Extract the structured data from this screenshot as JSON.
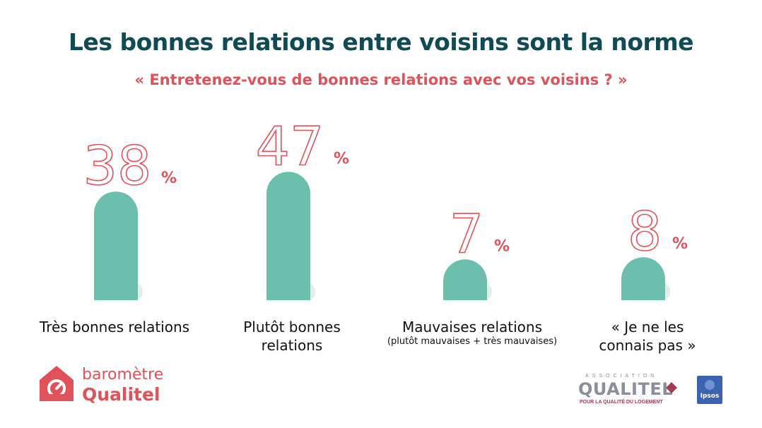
{
  "header": {
    "title": "Les bonnes relations entre voisins sont la norme",
    "subtitle": "« Entretenez-vous de bonnes relations avec vos voisins ? »"
  },
  "chart_data": {
    "type": "bar",
    "categories": [
      "Très bonnes relations",
      "Plutôt bonnes relations",
      "Mauvaises relations",
      "« Je ne les connais pas »"
    ],
    "category_notes": [
      "",
      "",
      "(plutôt mauvaises + très mauvaises)",
      ""
    ],
    "values": [
      38,
      47,
      7,
      8
    ],
    "value_labels": [
      "38",
      "47",
      "7",
      "8"
    ],
    "unit": "%",
    "title": "",
    "xlabel": "",
    "ylabel": "",
    "grid": false,
    "colors": {
      "bar": "#6bbfac",
      "value": "#e0525a",
      "title": "#0f4a55"
    }
  },
  "labels": {
    "cat1": "Très bonnes relations",
    "cat2_l1": "Plutôt bonnes",
    "cat2_l2": "relations",
    "cat3": "Mauvaises relations",
    "cat3_note": "(plutôt mauvaises + très mauvaises)",
    "cat4_l1": "« Je ne les",
    "cat4_l2": "connais pas »"
  },
  "footer": {
    "barometer_line1": "baromètre",
    "barometer_line2": "Qualitel",
    "qualitel_assoc": "ASSOCIATION",
    "qualitel_name": "QUALITEL",
    "qualitel_tag": "POUR LA QUALITÉ DU LOGEMENT",
    "ipsos": "Ipsos"
  }
}
